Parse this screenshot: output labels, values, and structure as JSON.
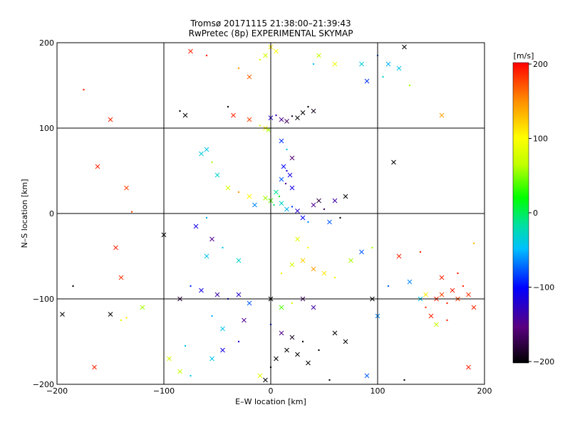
{
  "chart_data": {
    "type": "scatter",
    "title": "Tromsø 20171115 21:38:00–21:39:43",
    "subtitle": "RwPretec (8p) EXPERIMENTAL SKYMAP",
    "xlabel": "E–W location [km]",
    "ylabel": "N–S location [km]",
    "xlim": [
      -200,
      200
    ],
    "ylim": [
      -200,
      200
    ],
    "x_ticks": [
      "−200",
      "−100",
      "0",
      "100",
      "200"
    ],
    "y_ticks": [
      "−200",
      "−100",
      "0",
      "100",
      "200"
    ],
    "grid": true,
    "colorbar": {
      "unit": "[m/s]",
      "range": [
        -200,
        200
      ],
      "ticks": [
        "200",
        "100",
        "0",
        "−100",
        "−200"
      ],
      "colormap": [
        "#000000",
        "#5a0080",
        "#0000ff",
        "#00c0ff",
        "#00e0a0",
        "#00ff00",
        "#c0ff00",
        "#ffff00",
        "#ff9000",
        "#ff0000"
      ]
    },
    "markers": [
      "x",
      "dot"
    ],
    "points": [
      {
        "x": -175,
        "y": 145,
        "v": 190
      },
      {
        "x": -162,
        "y": 55,
        "v": 190
      },
      {
        "x": -135,
        "y": 30,
        "v": 180
      },
      {
        "x": -130,
        "y": 2,
        "v": 180
      },
      {
        "x": -145,
        "y": -40,
        "v": 190
      },
      {
        "x": -140,
        "y": -75,
        "v": 185
      },
      {
        "x": -185,
        "y": -85,
        "v": -200
      },
      {
        "x": -195,
        "y": -118,
        "v": -200
      },
      {
        "x": -150,
        "y": -118,
        "v": -200
      },
      {
        "x": -135,
        "y": -122,
        "v": 120
      },
      {
        "x": -100,
        "y": -25,
        "v": -200
      },
      {
        "x": -85,
        "y": -100,
        "v": -180
      },
      {
        "x": -80,
        "y": -155,
        "v": -60
      },
      {
        "x": -85,
        "y": -185,
        "v": 70
      },
      {
        "x": -95,
        "y": -170,
        "v": 80
      },
      {
        "x": -85,
        "y": 120,
        "v": -200
      },
      {
        "x": -80,
        "y": 115,
        "v": -200
      },
      {
        "x": -75,
        "y": 190,
        "v": 190
      },
      {
        "x": -60,
        "y": 185,
        "v": 190
      },
      {
        "x": -35,
        "y": 115,
        "v": 190
      },
      {
        "x": -20,
        "y": 110,
        "v": 180
      },
      {
        "x": -40,
        "y": 125,
        "v": -200
      },
      {
        "x": -60,
        "y": 75,
        "v": -60
      },
      {
        "x": -65,
        "y": 70,
        "v": -50
      },
      {
        "x": -55,
        "y": 60,
        "v": 60
      },
      {
        "x": -50,
        "y": 45,
        "v": -40
      },
      {
        "x": -40,
        "y": 30,
        "v": 80
      },
      {
        "x": -30,
        "y": 25,
        "v": 150
      },
      {
        "x": -20,
        "y": 20,
        "v": 110
      },
      {
        "x": -15,
        "y": 10,
        "v": -80
      },
      {
        "x": -60,
        "y": -5,
        "v": -70
      },
      {
        "x": -70,
        "y": -15,
        "v": -120
      },
      {
        "x": -55,
        "y": -30,
        "v": -150
      },
      {
        "x": -45,
        "y": -40,
        "v": -60
      },
      {
        "x": -60,
        "y": -50,
        "v": -60
      },
      {
        "x": -30,
        "y": -55,
        "v": -40
      },
      {
        "x": -75,
        "y": -85,
        "v": -100
      },
      {
        "x": -65,
        "y": -90,
        "v": -120
      },
      {
        "x": -50,
        "y": -95,
        "v": -140
      },
      {
        "x": -40,
        "y": -100,
        "v": -110
      },
      {
        "x": -30,
        "y": -95,
        "v": -130
      },
      {
        "x": -20,
        "y": -105,
        "v": -90
      },
      {
        "x": -55,
        "y": -120,
        "v": -70
      },
      {
        "x": -45,
        "y": -135,
        "v": -60
      },
      {
        "x": -25,
        "y": -125,
        "v": -150
      },
      {
        "x": -30,
        "y": -150,
        "v": -130
      },
      {
        "x": -45,
        "y": -160,
        "v": -120
      },
      {
        "x": -55,
        "y": -170,
        "v": -60
      },
      {
        "x": -75,
        "y": -190,
        "v": -60
      },
      {
        "x": -10,
        "y": -190,
        "v": 90
      },
      {
        "x": 0,
        "y": 195,
        "v": 120
      },
      {
        "x": -10,
        "y": 180,
        "v": 90
      },
      {
        "x": -5,
        "y": 185,
        "v": 80
      },
      {
        "x": 5,
        "y": 190,
        "v": 110
      },
      {
        "x": -30,
        "y": 170,
        "v": 150
      },
      {
        "x": -20,
        "y": 160,
        "v": 170
      },
      {
        "x": 0,
        "y": 112,
        "v": -130
      },
      {
        "x": 5,
        "y": 115,
        "v": -140
      },
      {
        "x": 10,
        "y": 110,
        "v": -150
      },
      {
        "x": 15,
        "y": 108,
        "v": -170
      },
      {
        "x": 20,
        "y": 114,
        "v": -190
      },
      {
        "x": 25,
        "y": 112,
        "v": -200
      },
      {
        "x": 30,
        "y": 118,
        "v": -200
      },
      {
        "x": 35,
        "y": 125,
        "v": -200
      },
      {
        "x": 40,
        "y": 120,
        "v": -190
      },
      {
        "x": -5,
        "y": 100,
        "v": 110
      },
      {
        "x": -10,
        "y": 103,
        "v": 80
      },
      {
        "x": -2,
        "y": 98,
        "v": 60
      },
      {
        "x": 10,
        "y": 85,
        "v": -100
      },
      {
        "x": 15,
        "y": 75,
        "v": -60
      },
      {
        "x": 20,
        "y": 65,
        "v": -160
      },
      {
        "x": 12,
        "y": 55,
        "v": -110
      },
      {
        "x": 15,
        "y": 50,
        "v": -130
      },
      {
        "x": 18,
        "y": 45,
        "v": -120
      },
      {
        "x": 10,
        "y": 40,
        "v": -90
      },
      {
        "x": 14,
        "y": 35,
        "v": -150
      },
      {
        "x": 20,
        "y": 30,
        "v": -120
      },
      {
        "x": 5,
        "y": 25,
        "v": -20
      },
      {
        "x": 8,
        "y": 20,
        "v": 10
      },
      {
        "x": 0,
        "y": 15,
        "v": 40
      },
      {
        "x": -5,
        "y": 18,
        "v": 60
      },
      {
        "x": 3,
        "y": 10,
        "v": -10
      },
      {
        "x": 10,
        "y": 12,
        "v": -40
      },
      {
        "x": 15,
        "y": 5,
        "v": -70
      },
      {
        "x": 20,
        "y": 8,
        "v": -100
      },
      {
        "x": 25,
        "y": 3,
        "v": -130
      },
      {
        "x": 30,
        "y": -5,
        "v": -110
      },
      {
        "x": 35,
        "y": -10,
        "v": -80
      },
      {
        "x": 40,
        "y": 10,
        "v": -150
      },
      {
        "x": 45,
        "y": 15,
        "v": -180
      },
      {
        "x": 50,
        "y": 5,
        "v": -170
      },
      {
        "x": 60,
        "y": 15,
        "v": -140
      },
      {
        "x": 70,
        "y": 20,
        "v": -200
      },
      {
        "x": 65,
        "y": -5,
        "v": -200
      },
      {
        "x": 55,
        "y": -10,
        "v": -90
      },
      {
        "x": 25,
        "y": -30,
        "v": 90
      },
      {
        "x": 35,
        "y": -40,
        "v": 110
      },
      {
        "x": 30,
        "y": -55,
        "v": 130
      },
      {
        "x": 20,
        "y": -60,
        "v": 80
      },
      {
        "x": 10,
        "y": -70,
        "v": 100
      },
      {
        "x": 40,
        "y": -65,
        "v": 150
      },
      {
        "x": 50,
        "y": -70,
        "v": 120
      },
      {
        "x": 60,
        "y": -75,
        "v": 100
      },
      {
        "x": 75,
        "y": -55,
        "v": 60
      },
      {
        "x": 85,
        "y": -45,
        "v": -90
      },
      {
        "x": 95,
        "y": -40,
        "v": 60
      },
      {
        "x": 0,
        "y": -100,
        "v": -200
      },
      {
        "x": 10,
        "y": -110,
        "v": 40
      },
      {
        "x": 20,
        "y": -105,
        "v": 80
      },
      {
        "x": 30,
        "y": -100,
        "v": -170
      },
      {
        "x": 40,
        "y": -110,
        "v": -140
      },
      {
        "x": 0,
        "y": -130,
        "v": -110
      },
      {
        "x": 10,
        "y": -140,
        "v": -150
      },
      {
        "x": 20,
        "y": -145,
        "v": -190
      },
      {
        "x": 30,
        "y": -150,
        "v": -200
      },
      {
        "x": 15,
        "y": -160,
        "v": -200
      },
      {
        "x": 5,
        "y": -170,
        "v": -200
      },
      {
        "x": 0,
        "y": -180,
        "v": -200
      },
      {
        "x": 25,
        "y": -165,
        "v": -200
      },
      {
        "x": 35,
        "y": -175,
        "v": -200
      },
      {
        "x": 45,
        "y": -160,
        "v": -200
      },
      {
        "x": 60,
        "y": -140,
        "v": -200
      },
      {
        "x": 70,
        "y": -150,
        "v": -200
      },
      {
        "x": 55,
        "y": -195,
        "v": -200
      },
      {
        "x": -5,
        "y": -195,
        "v": -200
      },
      {
        "x": 90,
        "y": -190,
        "v": -90
      },
      {
        "x": 125,
        "y": -195,
        "v": -200
      },
      {
        "x": 100,
        "y": -120,
        "v": -80
      },
      {
        "x": 95,
        "y": -100,
        "v": -200
      },
      {
        "x": 110,
        "y": -85,
        "v": -90
      },
      {
        "x": 130,
        "y": -80,
        "v": -80
      },
      {
        "x": 140,
        "y": -100,
        "v": -60
      },
      {
        "x": 145,
        "y": -110,
        "v": 180
      },
      {
        "x": 155,
        "y": -100,
        "v": 190
      },
      {
        "x": 160,
        "y": -95,
        "v": 180
      },
      {
        "x": 165,
        "y": -105,
        "v": 190
      },
      {
        "x": 170,
        "y": -90,
        "v": 190
      },
      {
        "x": 175,
        "y": -100,
        "v": 180
      },
      {
        "x": 180,
        "y": -85,
        "v": 190
      },
      {
        "x": 185,
        "y": -95,
        "v": 185
      },
      {
        "x": 190,
        "y": -110,
        "v": 190
      },
      {
        "x": 175,
        "y": -70,
        "v": 190
      },
      {
        "x": 160,
        "y": -75,
        "v": 190
      },
      {
        "x": 150,
        "y": -120,
        "v": 190
      },
      {
        "x": 165,
        "y": -125,
        "v": 190
      },
      {
        "x": 155,
        "y": -130,
        "v": 70
      },
      {
        "x": 145,
        "y": -95,
        "v": 120
      },
      {
        "x": 190,
        "y": -35,
        "v": 140
      },
      {
        "x": 185,
        "y": -180,
        "v": 190
      },
      {
        "x": 120,
        "y": -50,
        "v": 190
      },
      {
        "x": 140,
        "y": -45,
        "v": 190
      },
      {
        "x": 160,
        "y": 115,
        "v": 150
      },
      {
        "x": 115,
        "y": 60,
        "v": -200
      },
      {
        "x": 100,
        "y": 185,
        "v": -90
      },
      {
        "x": 110,
        "y": 175,
        "v": -70
      },
      {
        "x": 120,
        "y": 170,
        "v": -60
      },
      {
        "x": 105,
        "y": 160,
        "v": -40
      },
      {
        "x": 90,
        "y": 155,
        "v": -100
      },
      {
        "x": 85,
        "y": 175,
        "v": -50
      },
      {
        "x": 130,
        "y": 150,
        "v": 60
      },
      {
        "x": 125,
        "y": 195,
        "v": -200
      },
      {
        "x": 45,
        "y": 185,
        "v": 70
      },
      {
        "x": 40,
        "y": 175,
        "v": -60
      },
      {
        "x": 60,
        "y": 175,
        "v": 100
      },
      {
        "x": -120,
        "y": -110,
        "v": 60
      },
      {
        "x": -140,
        "y": -125,
        "v": 90
      },
      {
        "x": -165,
        "y": -180,
        "v": 190
      },
      {
        "x": -150,
        "y": 110,
        "v": 190
      }
    ]
  }
}
